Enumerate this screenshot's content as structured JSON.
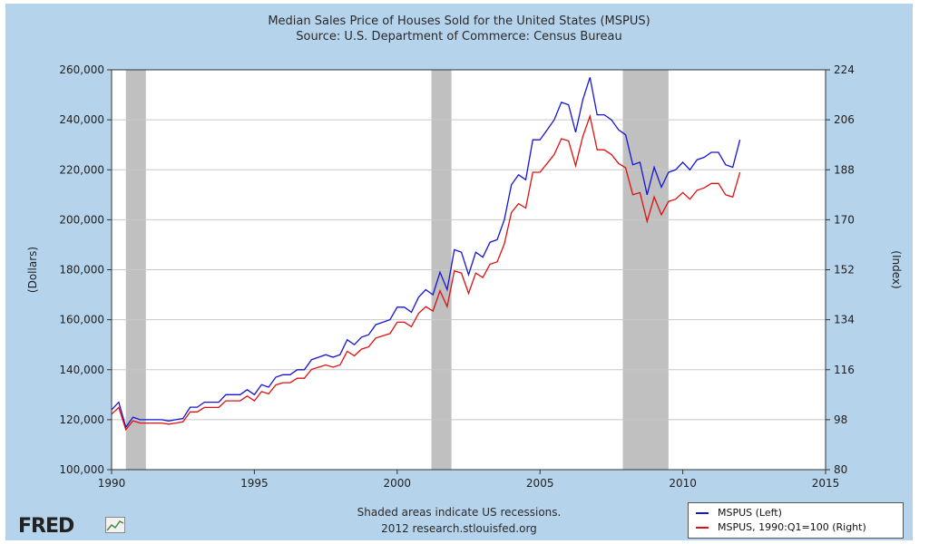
{
  "chart_data": {
    "type": "line",
    "title": "Median Sales Price of Houses Sold for the United States (MSPUS)",
    "subtitle": "Source: U.S. Department of Commerce: Census Bureau",
    "ylabel_left": "(Dollars)",
    "ylabel_right": "(Index)",
    "xlim": [
      1990,
      2015
    ],
    "ylim_left": [
      100000,
      260000
    ],
    "ylim_right": [
      80,
      224
    ],
    "x_ticks": [
      "1990",
      "1995",
      "2000",
      "2005",
      "2010",
      "2015"
    ],
    "y_ticks_left": [
      "100,000",
      "120,000",
      "140,000",
      "160,000",
      "180,000",
      "200,000",
      "220,000",
      "240,000",
      "260,000"
    ],
    "y_ticks_right": [
      "80",
      "98",
      "116",
      "134",
      "152",
      "170",
      "188",
      "206",
      "224"
    ],
    "grid": true,
    "legend_placement": "bottom-right",
    "recessions": [
      [
        1990.5,
        1991.2
      ],
      [
        2001.2,
        2001.9
      ],
      [
        2007.9,
        2009.5
      ]
    ],
    "x": [
      1990.0,
      1990.25,
      1990.5,
      1990.75,
      1991.0,
      1991.25,
      1991.5,
      1991.75,
      1992.0,
      1992.25,
      1992.5,
      1992.75,
      1993.0,
      1993.25,
      1993.5,
      1993.75,
      1994.0,
      1994.25,
      1994.5,
      1994.75,
      1995.0,
      1995.25,
      1995.5,
      1995.75,
      1996.0,
      1996.25,
      1996.5,
      1996.75,
      1997.0,
      1997.25,
      1997.5,
      1997.75,
      1998.0,
      1998.25,
      1998.5,
      1998.75,
      1999.0,
      1999.25,
      1999.5,
      1999.75,
      2000.0,
      2000.25,
      2000.5,
      2000.75,
      2001.0,
      2001.25,
      2001.5,
      2001.75,
      2002.0,
      2002.25,
      2002.5,
      2002.75,
      2003.0,
      2003.25,
      2003.5,
      2003.75,
      2004.0,
      2004.25,
      2004.5,
      2004.75,
      2005.0,
      2005.25,
      2005.5,
      2005.75,
      2006.0,
      2006.25,
      2006.5,
      2006.75,
      2007.0,
      2007.25,
      2007.5,
      2007.75,
      2008.0,
      2008.25,
      2008.5,
      2008.75,
      2009.0,
      2009.25,
      2009.5,
      2009.75,
      2010.0,
      2010.25,
      2010.5,
      2010.75,
      2011.0,
      2011.25,
      2011.5,
      2011.75,
      2012.0
    ],
    "series": [
      {
        "name": "MSPUS (Left)",
        "axis": "left",
        "color": "#1515d6",
        "values": [
          124000,
          127000,
          117000,
          121000,
          120000,
          120000,
          120000,
          120000,
          119500,
          120000,
          120500,
          125000,
          125000,
          127000,
          127000,
          127000,
          130000,
          130000,
          130000,
          132000,
          130000,
          134000,
          133000,
          137000,
          138000,
          138000,
          140000,
          140000,
          144000,
          145000,
          146000,
          145000,
          146000,
          152000,
          150000,
          153000,
          154000,
          158000,
          159000,
          160000,
          165000,
          165000,
          163000,
          169000,
          172000,
          170000,
          179000,
          172000,
          188000,
          187000,
          178000,
          187000,
          185000,
          191000,
          192000,
          200000,
          214000,
          218000,
          216000,
          232000,
          232000,
          236000,
          240000,
          247000,
          246000,
          235000,
          248000,
          257000,
          242000,
          242000,
          240000,
          236000,
          234000,
          222000,
          223000,
          210000,
          221000,
          213000,
          219000,
          220000,
          223000,
          220000,
          224000,
          225000,
          227000,
          227000,
          222000,
          221000,
          232000
        ]
      },
      {
        "name": "MSPUS, 1990:Q1=100 (Right)",
        "axis": "right",
        "color": "#dd1111",
        "values": [
          100,
          102.4,
          94.4,
          97.6,
          96.8,
          96.8,
          96.8,
          96.8,
          96.4,
          96.8,
          97.2,
          100.8,
          100.8,
          102.4,
          102.4,
          102.4,
          104.8,
          104.8,
          104.8,
          106.5,
          104.8,
          108.1,
          107.3,
          110.5,
          111.3,
          111.3,
          112.9,
          112.9,
          116.1,
          116.9,
          117.7,
          116.9,
          117.7,
          122.6,
          121.0,
          123.4,
          124.2,
          127.4,
          128.2,
          129.0,
          133.1,
          133.1,
          131.5,
          136.3,
          138.7,
          137.1,
          144.4,
          138.7,
          151.6,
          150.8,
          143.5,
          150.8,
          149.2,
          154.0,
          154.8,
          161.3,
          172.6,
          175.8,
          174.2,
          187.1,
          187.1,
          190.3,
          193.5,
          199.2,
          198.4,
          189.5,
          200.0,
          207.3,
          195.2,
          195.2,
          193.5,
          190.3,
          188.7,
          179.0,
          179.8,
          169.4,
          178.2,
          171.8,
          176.6,
          177.4,
          179.8,
          177.4,
          180.6,
          181.5,
          183.1,
          183.1,
          179.0,
          178.2,
          187.1
        ]
      }
    ]
  },
  "footer": {
    "note_line1": "Shaded areas indicate US recessions.",
    "note_line2": "2012 research.stlouisfed.org",
    "logo_text": "FRED"
  },
  "colors": {
    "background": "#b6d3ec",
    "plot_background": "#ffffff",
    "recession_shade": "#c0c0c0",
    "grid": "#c8c8c8"
  }
}
